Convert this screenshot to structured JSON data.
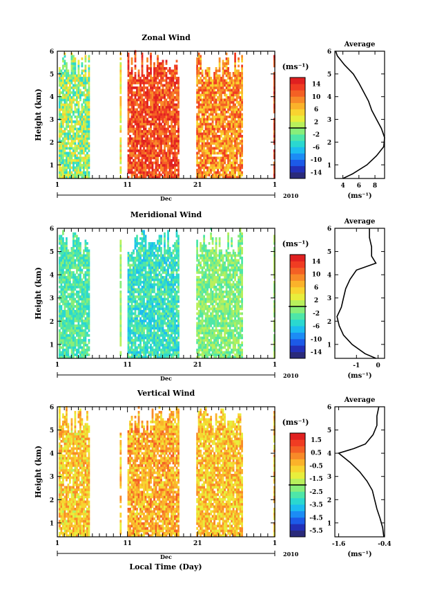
{
  "figure": {
    "xlabel": "Local Time (Day)",
    "month_label": "Dec",
    "year_label": "2010"
  },
  "chart_data": [
    {
      "type": "heatmap",
      "title": "Zonal Wind",
      "ylabel": "Height (km)",
      "colorbar_unit": "(ms⁻¹)",
      "colorbar_ticks": [
        14,
        10,
        6,
        2,
        -2,
        -6,
        -10,
        -14
      ],
      "colorbar_range": [
        -16,
        16
      ],
      "xlim": [
        1,
        32
      ],
      "ylim": [
        0.4,
        6
      ],
      "x_ticks": [
        "1",
        "11",
        "21",
        "1"
      ],
      "y_ticks": [
        1,
        2,
        3,
        4,
        5,
        6
      ],
      "data_intervals": [
        {
          "start": 1.2,
          "end": 5.5,
          "mean": 0,
          "spread": 6
        },
        {
          "start": 9.9,
          "end": 10.1,
          "mean": 4,
          "spread": 3
        },
        {
          "start": 11.0,
          "end": 18.2,
          "mean": 12,
          "spread": 4
        },
        {
          "start": 20.8,
          "end": 27.4,
          "mean": 9,
          "spread": 5
        },
        {
          "start": 31.8,
          "end": 32.0,
          "mean": 12,
          "spread": 3
        }
      ],
      "average": {
        "title": "Average",
        "xlabel": "(ms⁻¹)",
        "xlim": [
          3,
          9.2
        ],
        "x_ticks": [
          4,
          6,
          8
        ],
        "height": [
          0.4,
          0.6,
          1.0,
          1.4,
          1.8,
          2.2,
          2.6,
          3.0,
          3.4,
          3.8,
          4.2,
          4.6,
          5.0,
          5.4,
          5.8,
          6.0
        ],
        "value": [
          4.0,
          5.2,
          7.0,
          8.2,
          9.1,
          9.2,
          8.8,
          8.2,
          7.6,
          7.2,
          6.6,
          6.0,
          5.3,
          4.2,
          3.3,
          3.1
        ]
      }
    },
    {
      "type": "heatmap",
      "title": "Meridional Wind",
      "ylabel": "Height (km)",
      "colorbar_unit": "(ms⁻¹)",
      "colorbar_ticks": [
        14,
        10,
        6,
        2,
        -2,
        -6,
        -10,
        -14
      ],
      "colorbar_range": [
        -16,
        16
      ],
      "xlim": [
        1,
        32
      ],
      "ylim": [
        0.4,
        6
      ],
      "x_ticks": [
        "1",
        "11",
        "21",
        "1"
      ],
      "y_ticks": [
        1,
        2,
        3,
        4,
        5,
        6
      ],
      "data_intervals": [
        {
          "start": 1.2,
          "end": 5.5,
          "mean": -3,
          "spread": 3
        },
        {
          "start": 9.9,
          "end": 10.1,
          "mean": 0,
          "spread": 2
        },
        {
          "start": 11.0,
          "end": 18.2,
          "mean": -4,
          "spread": 3
        },
        {
          "start": 20.8,
          "end": 27.4,
          "mean": -1,
          "spread": 3
        },
        {
          "start": 31.8,
          "end": 32.0,
          "mean": 0,
          "spread": 2
        }
      ],
      "average": {
        "title": "Average",
        "xlabel": "(ms⁻¹)",
        "xlim": [
          -2.0,
          0.3
        ],
        "x_ticks": [
          -1,
          0
        ],
        "height": [
          0.4,
          0.6,
          1.0,
          1.4,
          1.8,
          2.2,
          2.6,
          3.0,
          3.4,
          3.8,
          4.2,
          4.5,
          4.8,
          5.2,
          5.6,
          6.0
        ],
        "value": [
          -0.1,
          -0.6,
          -1.2,
          -1.6,
          -1.8,
          -1.9,
          -1.7,
          -1.6,
          -1.5,
          -1.3,
          -1.0,
          -0.1,
          -0.3,
          -0.3,
          -0.4,
          -0.4
        ]
      }
    },
    {
      "type": "heatmap",
      "title": "Vertical Wind",
      "ylabel": "Height (km)",
      "colorbar_unit": "(ms⁻¹)",
      "colorbar_ticks": [
        1.5,
        0.5,
        -0.5,
        -1.5,
        -2.5,
        -3.5,
        -4.5,
        -5.5
      ],
      "colorbar_range": [
        -6,
        2
      ],
      "xlim": [
        1,
        32
      ],
      "ylim": [
        0.4,
        6
      ],
      "x_ticks": [
        "1",
        "11",
        "21",
        "1"
      ],
      "y_ticks": [
        1,
        2,
        3,
        4,
        5,
        6
      ],
      "data_intervals": [
        {
          "start": 1.2,
          "end": 5.5,
          "mean": -0.6,
          "spread": 1
        },
        {
          "start": 9.9,
          "end": 10.1,
          "mean": -0.5,
          "spread": 1
        },
        {
          "start": 11.0,
          "end": 18.2,
          "mean": -0.2,
          "spread": 1
        },
        {
          "start": 20.8,
          "end": 27.4,
          "mean": -0.5,
          "spread": 1
        },
        {
          "start": 31.8,
          "end": 32.0,
          "mean": -0.5,
          "spread": 1
        }
      ],
      "average": {
        "title": "Average",
        "xlabel": "(ms⁻¹)",
        "xlim": [
          -1.7,
          -0.4
        ],
        "x_ticks": [
          -1.6,
          -0.4
        ],
        "height": [
          0.4,
          0.8,
          1.2,
          1.6,
          2.0,
          2.4,
          2.8,
          3.2,
          3.6,
          4.0,
          4.2,
          4.4,
          4.8,
          5.2,
          5.6,
          6.0
        ],
        "value": [
          -0.42,
          -0.45,
          -0.52,
          -0.6,
          -0.66,
          -0.72,
          -0.86,
          -1.05,
          -1.3,
          -1.6,
          -1.2,
          -0.9,
          -0.7,
          -0.6,
          -0.6,
          -0.55
        ]
      }
    }
  ]
}
